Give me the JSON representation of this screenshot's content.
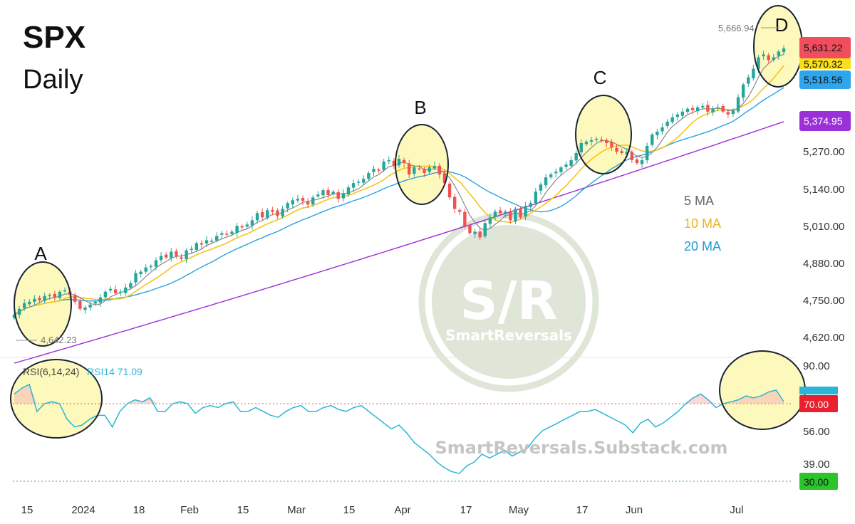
{
  "title": "SPX",
  "subtitle": "Daily",
  "colors": {
    "up": "#26a69a",
    "down": "#ef5350",
    "ma5": "#888888",
    "ma10": "#f5c518",
    "ma20": "#29a3e0",
    "ma100": "#9b30d9",
    "rsi": "#2ab6d6",
    "highlight": "#fdf7b0"
  },
  "legend": {
    "ma5": "5 MA",
    "ma10": "10 MA",
    "ma20": "20 MA"
  },
  "points": [
    "A",
    "B",
    "C",
    "D"
  ],
  "high_marker": "5,666.94",
  "low_marker": "4,642.23",
  "price_tags": [
    "5,631.22",
    "5,570.32",
    "5,518.56",
    "5,374.95"
  ],
  "rsi_header": {
    "label": "RSI(6,14,24)",
    "value": "RSI14 71.09"
  },
  "rsi_tags": [
    "70.00",
    "30.00"
  ],
  "watermark": {
    "logo": "S/R",
    "brand": "SmartReversals",
    "url": "SmartReversals.Substack.com"
  },
  "chart_data": [
    {
      "type": "candlestick",
      "title": "SPX",
      "subtitle": "Daily",
      "y_ticks": [
        "5,270.00",
        "5,140.00",
        "5,010.00",
        "4,880.00",
        "4,750.00",
        "4,620.00"
      ],
      "x_ticks": [
        "15",
        "2024",
        "18",
        "Feb",
        "15",
        "Mar",
        "15",
        "Apr",
        "17",
        "May",
        "17",
        "Jun",
        "Jul"
      ],
      "ylim": [
        4590,
        5700
      ],
      "series": [
        {
          "name": "5 MA"
        },
        {
          "name": "10 MA"
        },
        {
          "name": "20 MA"
        }
      ],
      "closes": [
        4700,
        4720,
        4740,
        4745,
        4755,
        4750,
        4765,
        4768,
        4760,
        4780,
        4785,
        4770,
        4745,
        4720,
        4725,
        4735,
        4745,
        4760,
        4780,
        4790,
        4775,
        4780,
        4795,
        4810,
        4845,
        4850,
        4865,
        4870,
        4890,
        4905,
        4900,
        4920,
        4905,
        4895,
        4925,
        4930,
        4950,
        4945,
        4960,
        4958,
        4975,
        4985,
        4980,
        4990,
        5010,
        5005,
        5015,
        5030,
        5055,
        5040,
        5065,
        5060,
        5045,
        5070,
        5090,
        5100,
        5105,
        5098,
        5085,
        5110,
        5120,
        5135,
        5118,
        5130,
        5105,
        5125,
        5145,
        5160,
        5165,
        5175,
        5195,
        5210,
        5205,
        5235,
        5240,
        5220,
        5245,
        5230,
        5190,
        5215,
        5210,
        5195,
        5215,
        5220,
        5190,
        5160,
        5110,
        5070,
        5060,
        5010,
        4985,
        4990,
        4970,
        5020,
        5040,
        5060,
        5055,
        5060,
        5030,
        5070,
        5040,
        5080,
        5090,
        5130,
        5155,
        5180,
        5190,
        5200,
        5215,
        5225,
        5240,
        5265,
        5300,
        5305,
        5310,
        5315,
        5310,
        5300,
        5285,
        5270,
        5265,
        5270,
        5240,
        5230,
        5240,
        5290,
        5330,
        5340,
        5355,
        5375,
        5390,
        5400,
        5410,
        5420,
        5415,
        5425,
        5430,
        5410,
        5420,
        5425,
        5410,
        5400,
        5415,
        5460,
        5505,
        5530,
        5560,
        5600,
        5610,
        5590,
        5600,
        5620,
        5631
      ],
      "ma100_range": [
        4530,
        5374.95
      ],
      "annotations": [
        "A",
        "B",
        "C",
        "D"
      ]
    },
    {
      "type": "line",
      "title": "RSI(6,14,24)",
      "y_ticks": [
        "90.00",
        "56.00",
        "39.00"
      ],
      "ylim": [
        20,
        95
      ],
      "series": [
        {
          "name": "RSI14",
          "values": [
            75,
            78,
            80,
            66,
            70,
            71,
            70,
            62,
            58,
            59,
            62,
            64,
            64,
            58,
            66,
            70,
            72,
            71,
            73,
            66,
            66,
            70,
            71,
            70,
            65,
            68,
            69,
            68,
            70,
            71,
            66,
            66,
            68,
            66,
            64,
            63,
            66,
            68,
            69,
            66,
            66,
            68,
            69,
            67,
            66,
            68,
            69,
            66,
            63,
            60,
            57,
            59,
            55,
            50,
            47,
            44,
            40,
            37,
            35,
            34,
            38,
            40,
            44,
            42,
            44,
            46,
            43,
            45,
            47,
            52,
            56,
            58,
            60,
            62,
            64,
            66,
            66,
            67,
            65,
            63,
            61,
            59,
            55,
            60,
            62,
            58,
            60,
            63,
            66,
            70,
            73,
            75,
            72,
            68,
            70,
            71,
            72,
            74,
            73,
            74,
            76,
            77,
            71.09
          ]
        }
      ],
      "levels": [
        70,
        30
      ]
    }
  ]
}
